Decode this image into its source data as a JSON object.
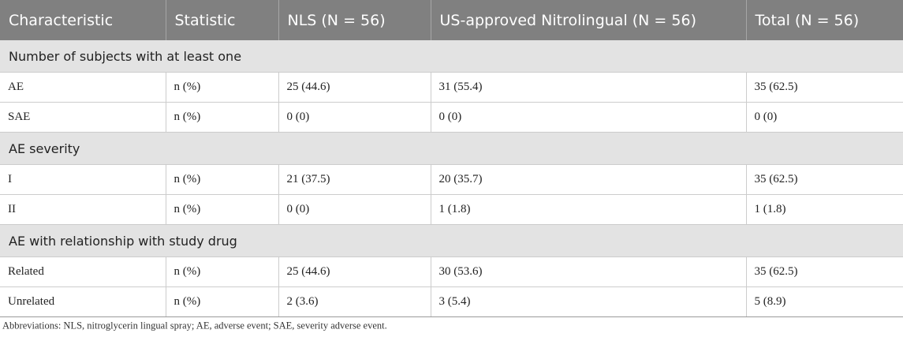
{
  "header": [
    "Characteristic",
    "Statistic",
    "NLS (N = 56)",
    "US-approved Nitrolingual (N = 56)",
    "Total (N = 56)"
  ],
  "sections": [
    {
      "title": "Number of subjects with at least one",
      "rows": [
        [
          "AE",
          "n (%)",
          "25 (44.6)",
          "31 (55.4)",
          "35 (62.5)"
        ],
        [
          "SAE",
          "n (%)",
          "0 (0)",
          "0 (0)",
          "0 (0)"
        ]
      ]
    },
    {
      "title": "AE severity",
      "rows": [
        [
          "I",
          "n (%)",
          "21 (37.5)",
          "20 (35.7)",
          "35 (62.5)"
        ],
        [
          "II",
          "n (%)",
          "0 (0)",
          "1 (1.8)",
          "1 (1.8)"
        ]
      ]
    },
    {
      "title": "AE with relationship with study drug",
      "rows": [
        [
          "Related",
          "n (%)",
          "25 (44.6)",
          "30 (53.6)",
          "35 (62.5)"
        ],
        [
          "Unrelated",
          "n (%)",
          "2 (3.6)",
          "3 (5.4)",
          "5 (8.9)"
        ]
      ]
    }
  ],
  "footnote": "Abbreviations: NLS, nitroglycerin lingual spray; AE, adverse event; SAE, severity adverse event."
}
